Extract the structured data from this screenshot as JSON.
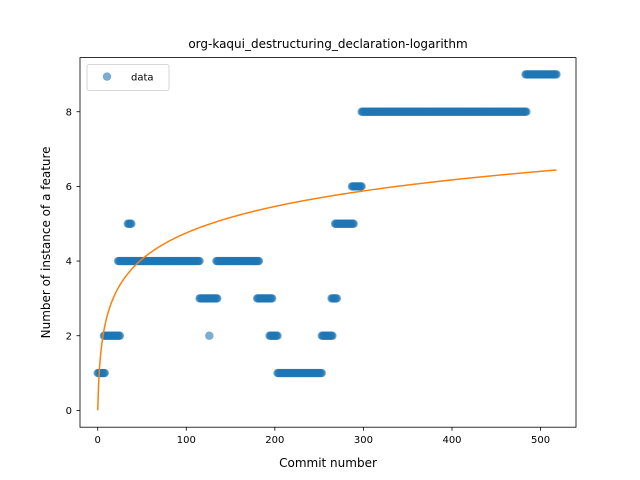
{
  "chart_data": {
    "type": "scatter",
    "title": "org-kaqui_destructuring_declaration-logarithm",
    "xlabel": "Commit number",
    "ylabel": "Number of instance of a feature",
    "xlim": [
      -20,
      540
    ],
    "ylim": [
      -0.45,
      9.45
    ],
    "x_ticks": [
      0,
      100,
      200,
      300,
      400,
      500
    ],
    "y_ticks": [
      0,
      2,
      4,
      6,
      8
    ],
    "grid": false,
    "legend": {
      "position": "top-left",
      "entries": [
        "data"
      ]
    },
    "colors": {
      "points": "#1f77b4",
      "fit": "#ff7f0e"
    },
    "series": [
      {
        "name": "data",
        "kind": "scatter",
        "segments": [
          {
            "from": 0,
            "to": 8,
            "y": 1
          },
          {
            "from": 7,
            "to": 25,
            "y": 2
          },
          {
            "from": 23,
            "to": 115,
            "y": 4
          },
          {
            "from": 34,
            "to": 38,
            "y": 5
          },
          {
            "from": 115,
            "to": 135,
            "y": 3
          },
          {
            "from": 126,
            "to": 126,
            "y": 2
          },
          {
            "from": 134,
            "to": 182,
            "y": 4
          },
          {
            "from": 180,
            "to": 197,
            "y": 3
          },
          {
            "from": 194,
            "to": 203,
            "y": 2
          },
          {
            "from": 203,
            "to": 253,
            "y": 1
          },
          {
            "from": 253,
            "to": 265,
            "y": 2
          },
          {
            "from": 264,
            "to": 270,
            "y": 3
          },
          {
            "from": 268,
            "to": 289,
            "y": 5
          },
          {
            "from": 287,
            "to": 298,
            "y": 6
          },
          {
            "from": 298,
            "to": 484,
            "y": 8
          },
          {
            "from": 483,
            "to": 518,
            "y": 9
          }
        ]
      },
      {
        "kind": "line",
        "function": "logarithmic",
        "coefficient": 1.03,
        "x_range": [
          0,
          518
        ]
      }
    ]
  }
}
